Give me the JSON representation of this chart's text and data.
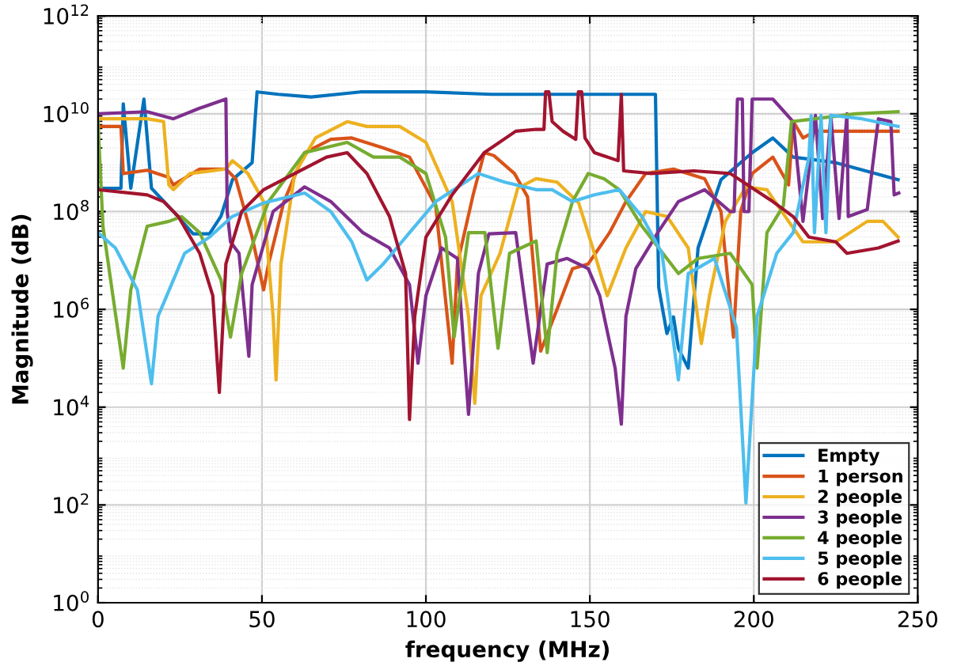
{
  "chart_data": {
    "type": "line",
    "xlabel": "frequency (MHz)",
    "ylabel": "Magnitude (dB)",
    "log": "y",
    "grid": true,
    "legend": "bottom right",
    "line_style": "solid",
    "marker": "none",
    "xlim": [
      0,
      250
    ],
    "xticks": [
      0,
      50,
      100,
      150,
      200,
      250
    ],
    "ylim": [
      1,
      1000000000000.0
    ],
    "yticks": [
      {
        "value": 1,
        "label": "10$^{0}$"
      },
      {
        "value": 100,
        "label": "10$^{2}$"
      },
      {
        "value": 10000,
        "label": "10$^{4}$"
      },
      {
        "value": 1000000,
        "label": "10$^{6}$"
      },
      {
        "value": 100000000,
        "label": "10$^{8}$"
      },
      {
        "value": 10000000000,
        "label": "10$^{10}$"
      },
      {
        "value": 1000000000000,
        "label": "10$^{12}$"
      }
    ],
    "series": [
      {
        "name": "Empty",
        "color": "#0072bd",
        "x": [
          0,
          7,
          7.7,
          10,
          14,
          16.3,
          23,
          29,
          34,
          37.5,
          41,
          47,
          48.5,
          55,
          65,
          80,
          100,
          120,
          140,
          160,
          170,
          171,
          173.5,
          175.5,
          177,
          180,
          183,
          190,
          199.5,
          205.8,
          212,
          225,
          244
        ],
        "values": [
          300000000.0,
          300000000.0,
          16000000000.0,
          300000000.0,
          20000000000.0,
          300000000.0,
          100000000.0,
          35000000.0,
          35000000.0,
          80000000.0,
          450000000.0,
          1000000000.0,
          28000000000.0,
          25000000000.0,
          22000000000.0,
          28000000000.0,
          28000000000.0,
          25000000000.0,
          25000000000.0,
          25000000000.0,
          25000000000.0,
          2800000.0,
          320000.0,
          700000.0,
          160000.0,
          63000.0,
          18000000.0,
          450000000.0,
          1600000000.0,
          3200000000.0,
          1300000000.0,
          1000000000.0,
          450000000.0
        ]
      },
      {
        "name": "1 person",
        "color": "#d95319",
        "x": [
          0,
          7,
          7.7,
          15,
          21.6,
          23,
          31,
          39,
          42,
          47,
          50.5,
          52,
          56.7,
          63,
          71,
          77.4,
          87,
          95,
          103,
          108,
          109.6,
          114.4,
          117.8,
          120.7,
          127,
          131,
          135,
          140,
          144.7,
          149.5,
          156,
          161,
          167,
          175.5,
          185,
          190,
          193.8,
          196,
          199.5,
          205.8,
          210.6,
          212,
          215,
          218.7,
          244
        ],
        "values": [
          5500000000.0,
          5500000000.0,
          600000000.0,
          700000000.0,
          500000000.0,
          350000000.0,
          740000000.0,
          740000000.0,
          470000000.0,
          30000000.0,
          2500000.0,
          8500000.0,
          160000000.0,
          1600000000.0,
          3000000000.0,
          3200000000.0,
          2000000000.0,
          1300000000.0,
          130000000.0,
          79000.0,
          8500000.0,
          220000000.0,
          1600000000.0,
          1400000000.0,
          600000000.0,
          200000000.0,
          140000.0,
          1000000.0,
          6800000.0,
          8500000.0,
          37000000.0,
          160000000.0,
          600000000.0,
          740000000.0,
          470000000.0,
          100000000.0,
          270000.0,
          100000000.0,
          600000000.0,
          1300000000.0,
          350000000.0,
          7000000000.0,
          3200000000.0,
          4400000000.0,
          4400000000.0
        ]
      },
      {
        "name": "2 people",
        "color": "#edb120",
        "x": [
          0,
          15,
          20,
          21.6,
          23,
          28,
          39,
          41,
          45.7,
          50.5,
          53.4,
          54.3,
          55.8,
          60,
          66.3,
          76,
          82,
          92,
          100,
          108,
          113,
          114.9,
          116.8,
          122.6,
          128,
          133.6,
          140,
          146.6,
          151.4,
          155.3,
          161,
          167,
          173.6,
          180,
          184,
          186.5,
          191.3,
          197.6,
          204,
          210.6,
          215,
          225,
          234.6,
          239.4,
          244
        ],
        "values": [
          7900000000.0,
          7900000000.0,
          6900000000.0,
          350000000.0,
          280000000.0,
          600000000.0,
          740000000.0,
          1100000000.0,
          600000000.0,
          160000000.0,
          720000.0,
          36000.0,
          8500000.0,
          600000000.0,
          3200000000.0,
          6900000000.0,
          5500000000.0,
          5500000000.0,
          2600000000.0,
          160000000.0,
          720000.0,
          12000.0,
          1900000.0,
          14000000.0,
          300000000.0,
          470000000.0,
          400000000.0,
          150000000.0,
          14000000.0,
          1900000.0,
          18000000.0,
          100000000.0,
          79000000.0,
          18000000.0,
          200000.0,
          1900000.0,
          63000000.0,
          320000000.0,
          280000000.0,
          63000000.0,
          24000000.0,
          24000000.0,
          63000000.0,
          63000000.0,
          30000000.0
        ]
      },
      {
        "name": "3 people",
        "color": "#7e2f8e",
        "x": [
          0,
          15,
          23,
          31,
          39,
          39.4,
          40.4,
          43,
          46,
          47,
          53.4,
          63,
          71,
          80.8,
          88.9,
          95,
          97.6,
          100,
          104.8,
          109.6,
          113,
          116,
          119.2,
          127.4,
          132.7,
          137,
          143,
          149.5,
          153,
          157.7,
          159.6,
          161,
          164,
          170.7,
          177,
          185,
          192.8,
          194,
          195,
          196.5,
          197,
          198.5,
          199.5,
          205.8,
          212,
          215,
          218.8,
          221,
          223.5,
          226,
          228.4,
          228.8,
          234.6,
          238,
          241.8,
          242.8,
          244.2
        ],
        "values": [
          10000000000.0,
          11000000000.0,
          7900000000.0,
          13000000000.0,
          20000000000.0,
          100000000.0,
          24000000.0,
          14000000.0,
          110000.0,
          3200000.0,
          100000000.0,
          320000000.0,
          160000000.0,
          37000000.0,
          18000000.0,
          3200000.0,
          79000.0,
          1900000.0,
          18000000.0,
          11000000.0,
          7100.0,
          5400000.0,
          35000000.0,
          37000000.0,
          79000.0,
          8500000.0,
          11000000.0,
          6800000.0,
          1900000.0,
          63000.0,
          4500.0,
          720000.0,
          6800000.0,
          37000000.0,
          160000000.0,
          280000000.0,
          100000000.0,
          100000000.0,
          20000000000.0,
          20000000000.0,
          100000000.0,
          100000000.0,
          20000000000.0,
          20000000000.0,
          6900000000.0,
          63000000.0,
          9300000000.0,
          72000000.0,
          9300000000.0,
          72000000.0,
          10000000000.0,
          79000000.0,
          110000000.0,
          7900000000.0,
          6900000000.0,
          220000000.0,
          240000000.0
        ]
      },
      {
        "name": "4 people",
        "color": "#77ac30",
        "x": [
          0,
          1.5,
          7.7,
          10,
          15,
          21.6,
          25.5,
          31,
          37.5,
          40.4,
          43.8,
          52,
          63,
          76,
          84,
          92,
          100,
          106,
          108.6,
          113,
          118,
          122,
          125.5,
          133.6,
          137,
          140,
          144.7,
          149.5,
          154.3,
          159,
          165.9,
          177,
          183,
          192.8,
          199.5,
          201,
          204,
          209,
          211.5,
          218.7,
          231,
          244
        ],
        "values": [
          6900000000.0,
          50000000.0,
          63000.0,
          2500000.0,
          50000000.0,
          63000000.0,
          79000000.0,
          37000000.0,
          4000000.0,
          270000.0,
          5400000.0,
          160000000.0,
          1600000000.0,
          2600000000.0,
          1300000000.0,
          1300000000.0,
          600000000.0,
          30000000.0,
          270000.0,
          37000000.0,
          37000000.0,
          160000.0,
          14000000.0,
          25000000.0,
          130000.0,
          14000000.0,
          160000000.0,
          600000000.0,
          470000000.0,
          280000000.0,
          50000000.0,
          5400000.0,
          11000000.0,
          14000000.0,
          3200000.0,
          63000.0,
          37000000.0,
          130000000.0,
          6900000000.0,
          7900000000.0,
          10000000000.0,
          11000000000.0
        ]
      },
      {
        "name": "5 people",
        "color": "#4dbeee",
        "x": [
          0,
          5.3,
          12,
          16.3,
          18.3,
          23,
          26.4,
          34,
          40.9,
          50.5,
          63,
          71,
          77.4,
          82,
          87,
          95,
          103,
          116,
          124,
          133.6,
          138.5,
          144.7,
          151.4,
          159,
          165.9,
          172,
          177,
          180,
          188,
          194.7,
          197.6,
          201,
          207,
          212,
          216.8,
          217.5,
          218.5,
          220.5,
          222,
          223.5,
          233,
          244
        ],
        "values": [
          37000000.0,
          18000000.0,
          2500000.0,
          30000.0,
          720000.0,
          4000000.0,
          14000000.0,
          30000000.0,
          79000000.0,
          150000000.0,
          240000000.0,
          100000000.0,
          24000000.0,
          4000000.0,
          8500000.0,
          37000000.0,
          160000000.0,
          600000000.0,
          400000000.0,
          280000000.0,
          280000000.0,
          160000000.0,
          220000000.0,
          280000000.0,
          79000000.0,
          14000000.0,
          36000.0,
          5400000.0,
          11000000.0,
          430000.0,
          110,
          720000.0,
          14000000.0,
          37000000.0,
          1300000000.0,
          9300000000.0,
          37000000.0,
          9300000000.0,
          37000000.0,
          9300000000.0,
          7900000000.0,
          5500000000.0
        ]
      },
      {
        "name": "6 people",
        "color": "#a2142f",
        "x": [
          0,
          15,
          20,
          24.5,
          31,
          35,
          37,
          39,
          43.8,
          50.5,
          60,
          69.7,
          76,
          82,
          88.9,
          93.8,
          95,
          96.6,
          100,
          108,
          117.8,
          127.4,
          133.6,
          136,
          136.5,
          137.5,
          138.5,
          141.8,
          145.7,
          146.5,
          147.5,
          148.5,
          151.4,
          158.6,
          159.6,
          160.3,
          168.7,
          181.7,
          192.8,
          205.8,
          212,
          216.8,
          225,
          228.4,
          238,
          244
        ],
        "values": [
          280000000.0,
          220000000.0,
          160000000.0,
          79000000.0,
          14000000.0,
          1900000.0,
          20000.0,
          8500000.0,
          100000000.0,
          280000000.0,
          600000000.0,
          1300000000.0,
          1600000000.0,
          600000000.0,
          79000000.0,
          5400000.0,
          5600.0,
          720000.0,
          30000000.0,
          220000000.0,
          1600000000.0,
          4400000000.0,
          4800000000.0,
          4800000000.0,
          28000000000.0,
          28000000000.0,
          6900000000.0,
          4400000000.0,
          3000000000.0,
          28000000000.0,
          28000000000.0,
          3200000000.0,
          1600000000.0,
          1100000000.0,
          25000000000.0,
          680000000.0,
          600000000.0,
          680000000.0,
          600000000.0,
          160000000.0,
          79000000.0,
          30000000.0,
          24000000.0,
          14000000.0,
          18000000.0,
          25000000.0
        ]
      }
    ]
  }
}
